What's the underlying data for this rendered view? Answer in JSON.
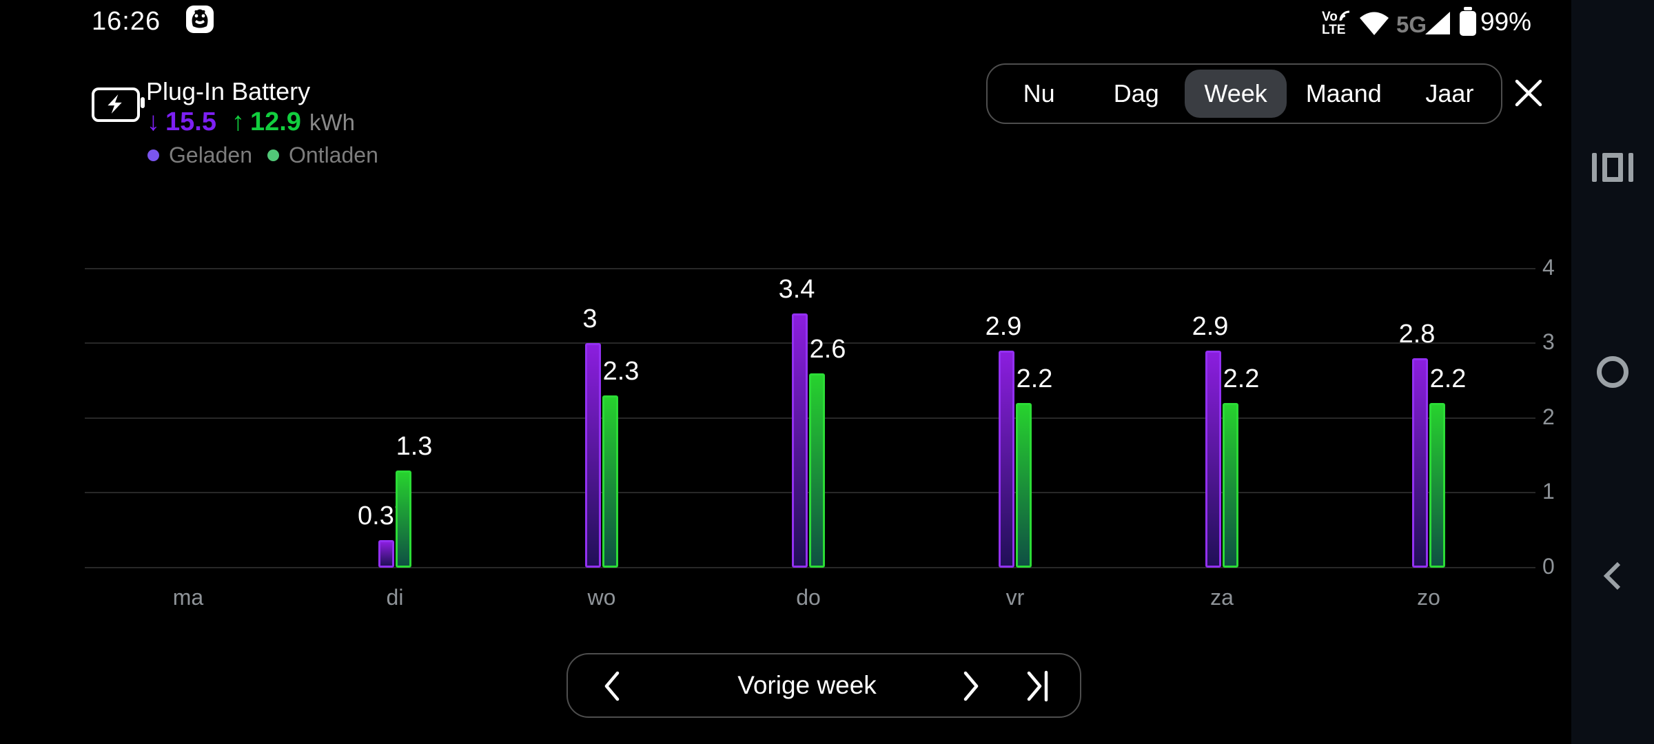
{
  "status_bar": {
    "time": "16:26",
    "volte_top": "Vo",
    "volte_bottom": "LTE",
    "network": "5G",
    "battery_percent": "99%"
  },
  "header": {
    "title": "Plug-In Battery",
    "down_arrow": "↓",
    "up_arrow": "↑",
    "charged_total": "15.5",
    "discharged_total": "12.9",
    "unit": "kWh",
    "accent_purple": "#7d20f3",
    "accent_green": "#12ce3e",
    "legend": [
      {
        "label": "Geladen",
        "color": "#7b55ee"
      },
      {
        "label": "Ontladen",
        "color": "#52c878"
      }
    ]
  },
  "tabs": {
    "items": [
      "Nu",
      "Dag",
      "Week",
      "Maand",
      "Jaar"
    ],
    "selected": "Week"
  },
  "chart_data": {
    "type": "bar",
    "title": "Plug-In Battery week view",
    "categories": [
      "ma",
      "di",
      "wo",
      "do",
      "vr",
      "za",
      "zo"
    ],
    "series": [
      {
        "name": "Geladen",
        "values": [
          null,
          0.37,
          3,
          3.4,
          2.9,
          2.9,
          2.8
        ],
        "labels": [
          "",
          "0.37",
          "3",
          "3.4",
          "2.9",
          "2.9",
          "2.8"
        ],
        "stroke": "#9330f2",
        "fill_top": "#8b1ede",
        "fill_bottom": "#211058",
        "side": "left",
        "label_offset": -4
      },
      {
        "name": "Ontladen",
        "values": [
          null,
          1.3,
          2.3,
          2.6,
          2.2,
          2.2,
          2.2
        ],
        "labels": [
          "",
          "1.3",
          "2.3",
          "2.6",
          "2.2",
          "2.2",
          "2.2"
        ],
        "stroke": "#2bdc36",
        "fill_top": "#27d22e",
        "fill_bottom": "#0f5044",
        "side": "right",
        "label_offset": 16
      }
    ],
    "ylim": [
      0,
      4
    ],
    "yticks": [
      0,
      1,
      2,
      3,
      4
    ],
    "grid": true,
    "xlabel": "",
    "ylabel": "",
    "legend_position": "top-left"
  },
  "footer": {
    "label": "Vorige week"
  }
}
